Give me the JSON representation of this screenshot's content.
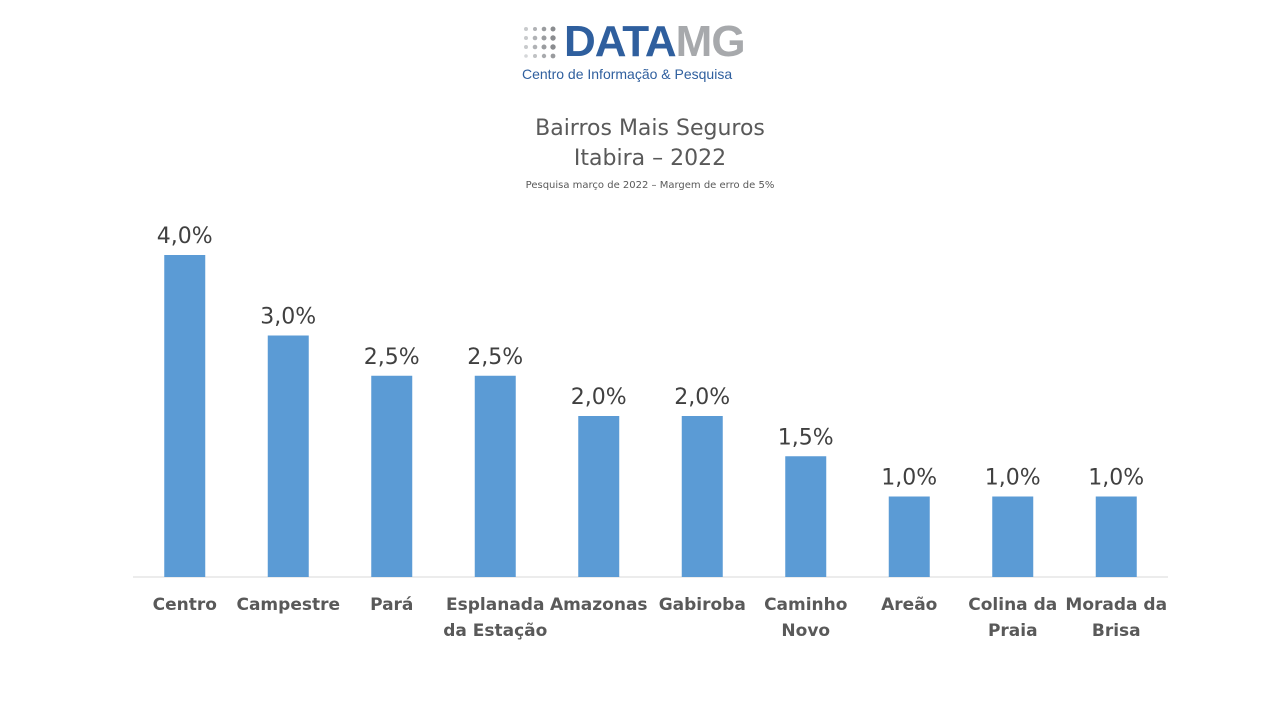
{
  "logo": {
    "brand_part1": "DATA",
    "brand_part2": "MG",
    "tagline": "Centro de Informação & Pesquisa",
    "colors": {
      "primary": "#2f5f9e",
      "secondary": "#a7a9ac"
    }
  },
  "chart_data": {
    "type": "bar",
    "title": "Bairros Mais Seguros",
    "subtitle": "Itabira – 2022",
    "note": "Pesquisa março de 2022 – Margem de erro de 5%",
    "categories": [
      [
        "Centro"
      ],
      [
        "Campestre"
      ],
      [
        "Pará"
      ],
      [
        "Esplanada",
        "da Estação"
      ],
      [
        "Amazonas"
      ],
      [
        "Gabiroba"
      ],
      [
        "Caminho",
        "Novo"
      ],
      [
        "Areão"
      ],
      [
        "Colina da",
        "Praia"
      ],
      [
        "Morada da",
        "Brisa"
      ]
    ],
    "values": [
      4.0,
      3.0,
      2.5,
      2.5,
      2.0,
      2.0,
      1.5,
      1.0,
      1.0,
      1.0
    ],
    "data_labels": [
      "4,0%",
      "3,0%",
      "2,5%",
      "2,5%",
      "2,0%",
      "2,0%",
      "1,5%",
      "1,0%",
      "1,0%",
      "1,0%"
    ],
    "ylim": [
      0,
      4.0
    ],
    "grid": false,
    "legend": "none",
    "bar_color": "#5b9bd5"
  }
}
